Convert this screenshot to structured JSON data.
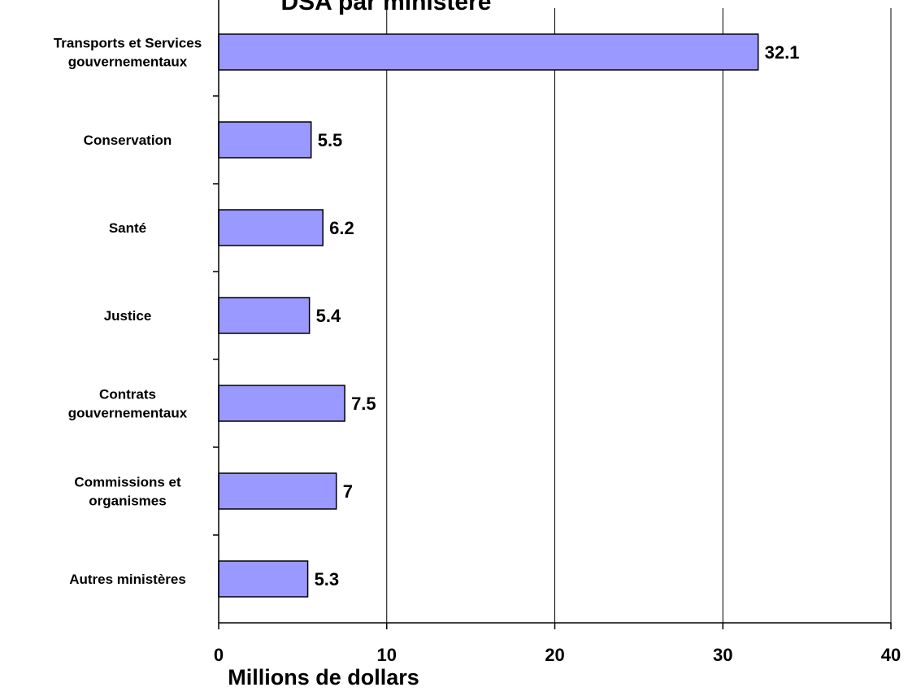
{
  "chart_data": {
    "type": "bar",
    "orientation": "horizontal",
    "title": "DSA par ministère",
    "xlabel": "Millions de dollars",
    "ylabel": "",
    "categories": [
      [
        "Transports et Services",
        "gouvernementaux"
      ],
      [
        "Conservation"
      ],
      [
        "Santé"
      ],
      [
        "Justice"
      ],
      [
        "Contrats",
        "gouvernementaux"
      ],
      [
        "Commissions et",
        "organismes"
      ],
      [
        "Autres ministères"
      ]
    ],
    "values": [
      32.1,
      5.5,
      6.2,
      5.4,
      7.5,
      7,
      5.3
    ],
    "value_labels": [
      "32.1",
      "5.5",
      "6.2",
      "5.4",
      "7.5",
      "7",
      "5.3"
    ],
    "xlim": [
      0,
      40
    ],
    "xticks": [
      0,
      10,
      20,
      30,
      40
    ],
    "grid": "vertical",
    "legend": "none",
    "bar_color": "#9999ff",
    "bar_edge_color": "#000000"
  }
}
